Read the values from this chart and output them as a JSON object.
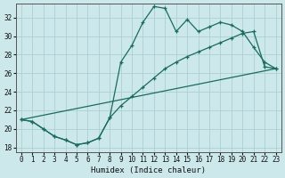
{
  "xlabel": "Humidex (Indice chaleur)",
  "background_color": "#cce8ea",
  "grid_color": "#aacfd4",
  "line_color": "#1a6b5e",
  "xlim": [
    -0.5,
    23.5
  ],
  "ylim": [
    17.5,
    33.5
  ],
  "xticks": [
    0,
    1,
    2,
    3,
    4,
    5,
    6,
    7,
    8,
    9,
    10,
    11,
    12,
    13,
    14,
    15,
    16,
    17,
    18,
    19,
    20,
    21,
    22,
    23
  ],
  "yticks": [
    18,
    20,
    22,
    24,
    26,
    28,
    30,
    32
  ],
  "line1_x": [
    0,
    1,
    2,
    3,
    4,
    5,
    6,
    7,
    8,
    9,
    10,
    11,
    12,
    13,
    14,
    15,
    16,
    17,
    18,
    19,
    20,
    21,
    22,
    23
  ],
  "line1_y": [
    21.0,
    20.8,
    20.0,
    19.2,
    18.8,
    18.3,
    18.5,
    19.0,
    21.2,
    27.2,
    29.0,
    31.5,
    33.2,
    33.0,
    30.5,
    31.8,
    30.5,
    31.0,
    31.5,
    31.2,
    30.5,
    28.8,
    27.2,
    26.5
  ],
  "line2_x": [
    0,
    1,
    2,
    3,
    4,
    5,
    6,
    7,
    8,
    9,
    10,
    11,
    12,
    13,
    14,
    15,
    16,
    17,
    18,
    19,
    20,
    21,
    22,
    23
  ],
  "line2_y": [
    21.0,
    20.8,
    20.0,
    19.2,
    18.8,
    18.3,
    18.5,
    19.0,
    21.2,
    22.5,
    23.5,
    24.5,
    25.5,
    26.5,
    27.2,
    27.8,
    28.3,
    28.8,
    29.3,
    29.8,
    30.3,
    30.5,
    26.7,
    26.5
  ],
  "line3_x": [
    0,
    23
  ],
  "line3_y": [
    21.0,
    26.5
  ]
}
